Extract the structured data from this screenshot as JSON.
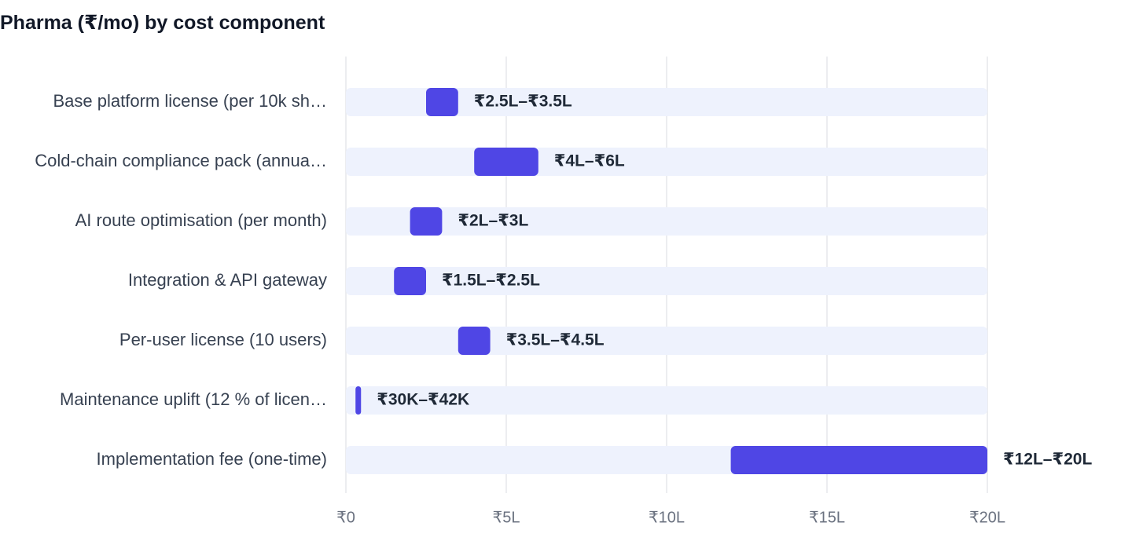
{
  "chart_data": {
    "type": "bar",
    "subtype": "range",
    "title": "Pharma (₹/mo) by cost component",
    "xlabel": "",
    "ylabel": "",
    "xlim": [
      0,
      2000000
    ],
    "grid": true,
    "x_ticks": [
      {
        "value": 0,
        "label": "₹0"
      },
      {
        "value": 500000,
        "label": "₹5L"
      },
      {
        "value": 1000000,
        "label": "₹10L"
      },
      {
        "value": 1500000,
        "label": "₹15L"
      },
      {
        "value": 2000000,
        "label": "₹20L"
      }
    ],
    "categories": [
      "Base platform license (per 10k sh…",
      "Cold-chain compliance pack (annua…",
      "AI route optimisation (per month)",
      "Integration & API gateway",
      "Per-user license (10 users)",
      "Maintenance uplift (12 % of licen…",
      "Implementation fee (one-time)"
    ],
    "ranges": [
      {
        "low": 250000,
        "high": 350000,
        "label": "₹2.5L–₹3.5L"
      },
      {
        "low": 400000,
        "high": 600000,
        "label": "₹4L–₹6L"
      },
      {
        "low": 200000,
        "high": 300000,
        "label": "₹2L–₹3L"
      },
      {
        "low": 150000,
        "high": 250000,
        "label": "₹1.5L–₹2.5L"
      },
      {
        "low": 350000,
        "high": 450000,
        "label": "₹3.5L–₹4.5L"
      },
      {
        "low": 30000,
        "high": 42000,
        "label": "₹30K–₹42K"
      },
      {
        "low": 1200000,
        "high": 2000000,
        "label": "₹12L–₹20L"
      }
    ],
    "colors": {
      "bar": "#4f46e5",
      "track": "#eef2fd",
      "grid": "#e5e7eb"
    }
  }
}
